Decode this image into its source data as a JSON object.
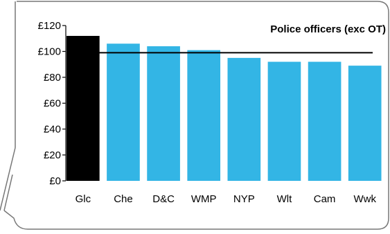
{
  "chart_data": {
    "type": "bar",
    "title": "Police officers (exc OT)",
    "categories": [
      "Glc",
      "Che",
      "D&C",
      "WMP",
      "NYP",
      "Wlt",
      "Cam",
      "Wwk"
    ],
    "values": [
      112,
      106,
      104,
      101,
      95,
      92,
      92,
      89
    ],
    "reference_line": 99,
    "ylim": [
      0,
      120
    ],
    "yticks": [
      0,
      20,
      40,
      60,
      80,
      100,
      120
    ],
    "ytick_labels": [
      "£0",
      "£20",
      "£40",
      "£60",
      "£80",
      "£100",
      "£120"
    ],
    "xlabel": "",
    "ylabel": "",
    "grid": false,
    "colors": {
      "highlight_bar": "#000000",
      "bar": "#33b5e5",
      "reference_line": "#000000",
      "frame": "#777777"
    }
  }
}
